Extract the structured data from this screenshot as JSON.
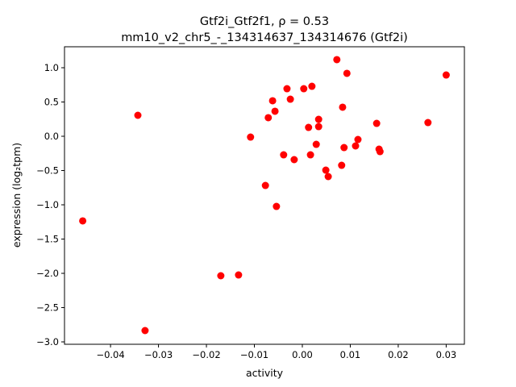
{
  "chart_data": {
    "type": "scatter",
    "title_line1": "Gtf2i_Gtf2f1, ρ = 0.53",
    "title_line2": "mm10_v2_chr5_-_134314637_134314676 (Gtf2i)",
    "xlabel": "activity",
    "ylabel": "expression (log₂tpm)",
    "xlim": [
      -0.0496,
      0.0338
    ],
    "ylim": [
      -3.035,
      1.306
    ],
    "xticks": [
      -0.04,
      -0.03,
      -0.02,
      -0.01,
      0.0,
      0.01,
      0.02,
      0.03
    ],
    "xtick_labels": [
      "−0.04",
      "−0.03",
      "−0.02",
      "−0.01",
      "0.00",
      "0.01",
      "0.02",
      "0.03"
    ],
    "yticks": [
      -3.0,
      -2.5,
      -2.0,
      -1.5,
      -1.0,
      -0.5,
      0.0,
      0.5,
      1.0
    ],
    "ytick_labels": [
      "−3.0",
      "−2.5",
      "−2.0",
      "−1.5",
      "−1.0",
      "−0.5",
      "0.0",
      "0.5",
      "1.0"
    ],
    "grid": false,
    "marker_color": "#ff0000",
    "points": [
      [
        -0.0458,
        -1.235
      ],
      [
        -0.0343,
        0.306
      ],
      [
        -0.0328,
        -2.835
      ],
      [
        -0.017,
        -2.035
      ],
      [
        -0.0133,
        -2.024
      ],
      [
        -0.0108,
        -0.012
      ],
      [
        -0.0077,
        -0.718
      ],
      [
        -0.0071,
        0.271
      ],
      [
        -0.0062,
        0.518
      ],
      [
        -0.0057,
        0.365
      ],
      [
        -0.0054,
        -1.024
      ],
      [
        -0.0039,
        -0.271
      ],
      [
        -0.0032,
        0.694
      ],
      [
        -0.0025,
        0.541
      ],
      [
        -0.0017,
        -0.341
      ],
      [
        0.0003,
        0.694
      ],
      [
        0.0013,
        0.129
      ],
      [
        0.0017,
        -0.271
      ],
      [
        0.002,
        0.729
      ],
      [
        0.0029,
        -0.118
      ],
      [
        0.0034,
        0.247
      ],
      [
        0.0034,
        0.141
      ],
      [
        0.0049,
        -0.494
      ],
      [
        0.0054,
        -0.588
      ],
      [
        0.0072,
        1.118
      ],
      [
        0.0082,
        -0.424
      ],
      [
        0.0084,
        0.424
      ],
      [
        0.0087,
        -0.165
      ],
      [
        0.0093,
        0.918
      ],
      [
        0.0111,
        -0.141
      ],
      [
        0.0116,
        -0.047
      ],
      [
        0.0155,
        0.188
      ],
      [
        0.016,
        -0.188
      ],
      [
        0.0162,
        -0.224
      ],
      [
        0.0262,
        0.2
      ],
      [
        0.03,
        0.894
      ]
    ]
  }
}
